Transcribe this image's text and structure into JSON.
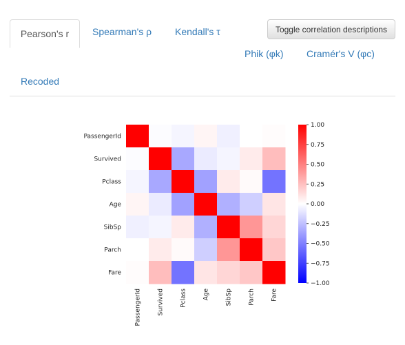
{
  "tabs": [
    {
      "label": "Pearson's r",
      "active": true
    },
    {
      "label": "Spearman's ρ",
      "active": false
    },
    {
      "label": "Kendall's τ",
      "active": false
    },
    {
      "label": "Phik (φk)",
      "active": false
    },
    {
      "label": "Cramér's V (φc)",
      "active": false
    },
    {
      "label": "Recoded",
      "active": false
    }
  ],
  "toggle_button": {
    "label": "Toggle correlation descriptions"
  },
  "chart_data": {
    "type": "heatmap",
    "variables": [
      "PassengerId",
      "Survived",
      "Pclass",
      "Age",
      "SibSp",
      "Parch",
      "Fare"
    ],
    "matrix": [
      [
        1.0,
        -0.01,
        -0.04,
        0.04,
        -0.06,
        -0.0,
        0.01
      ],
      [
        -0.01,
        1.0,
        -0.34,
        -0.08,
        -0.04,
        0.08,
        0.26
      ],
      [
        -0.04,
        -0.34,
        1.0,
        -0.37,
        0.08,
        0.02,
        -0.55
      ],
      [
        0.04,
        -0.08,
        -0.37,
        1.0,
        -0.31,
        -0.19,
        0.1
      ],
      [
        -0.06,
        -0.04,
        0.08,
        -0.31,
        1.0,
        0.41,
        0.16
      ],
      [
        -0.0,
        0.08,
        0.02,
        -0.19,
        0.41,
        1.0,
        0.22
      ],
      [
        0.01,
        0.26,
        -0.55,
        0.1,
        0.16,
        0.22,
        1.0
      ]
    ],
    "colormap": "bwr",
    "colorbar": {
      "min": -1.0,
      "max": 1.0,
      "ticks": [
        1.0,
        0.75,
        0.5,
        0.25,
        0.0,
        -0.25,
        -0.5,
        -0.75,
        -1.0
      ],
      "tick_labels": [
        "1.00",
        "0.75",
        "0.50",
        "0.25",
        "0.00",
        "−0.25",
        "−0.50",
        "−0.75",
        "−1.00"
      ]
    }
  }
}
